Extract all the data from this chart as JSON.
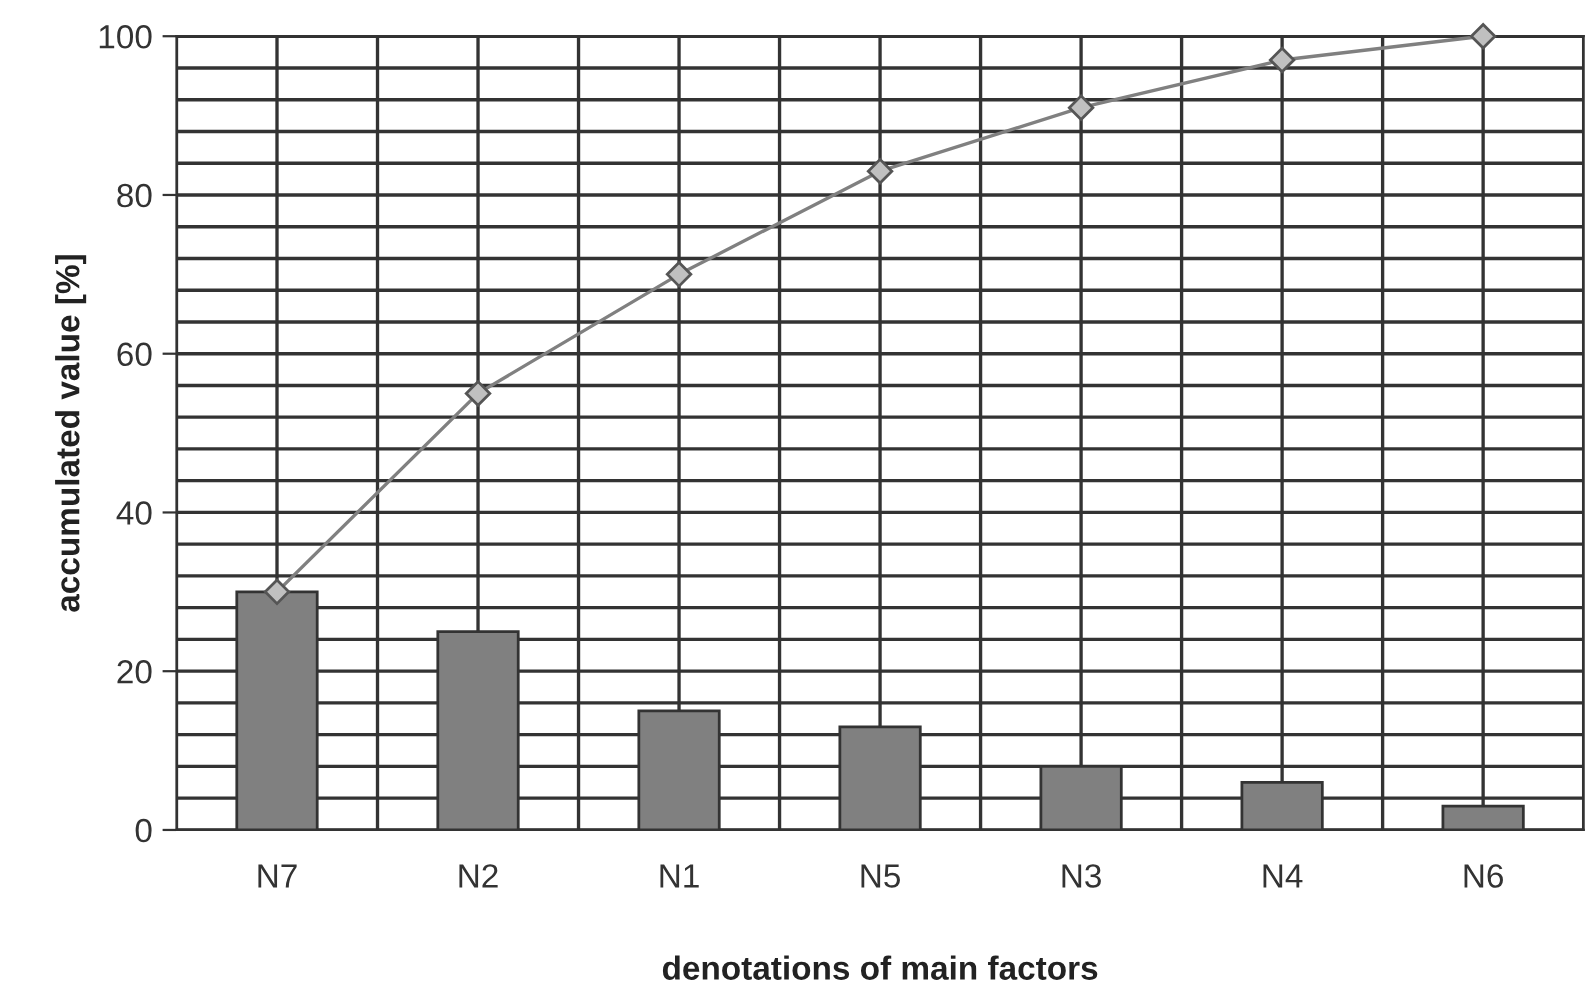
{
  "chart_data": {
    "type": "bar",
    "xlabel": "denotations of main factors",
    "ylabel": "accumulated value [%]",
    "categories": [
      "N7",
      "N2",
      "N1",
      "N5",
      "N3",
      "N4",
      "N6"
    ],
    "series": [
      {
        "color": "#808080",
        "values": [
          30,
          25,
          15,
          13,
          8,
          6,
          3
        ]
      },
      {
        "type": "line",
        "color": "#808080",
        "marker": "diamond",
        "values": [
          30,
          55,
          70,
          83,
          91,
          97,
          100
        ]
      }
    ],
    "ylim": [
      0,
      100
    ],
    "yticks": [
      0,
      {
        "value": 4,
        "label": null
      },
      {
        "value": 8,
        "label": null
      },
      {
        "value": 12,
        "label": null
      },
      {
        "value": 16,
        "label": null
      },
      20,
      {
        "value": 24,
        "label": null
      },
      {
        "value": 28,
        "label": null
      },
      {
        "value": 32,
        "label": null
      },
      {
        "value": 36,
        "label": null
      },
      40,
      {
        "value": 44,
        "label": null
      },
      {
        "value": 48,
        "label": null
      },
      {
        "value": 52,
        "label": null
      },
      {
        "value": 56,
        "label": null
      },
      60,
      {
        "value": 64,
        "label": null
      },
      {
        "value": 68,
        "label": null
      },
      {
        "value": 72,
        "label": null
      },
      {
        "value": 76,
        "label": null
      },
      80,
      {
        "value": 84,
        "label": null
      },
      {
        "value": 88,
        "label": null
      },
      {
        "value": 92,
        "label": null
      },
      {
        "value": 96,
        "label": null
      },
      100
    ],
    "grid": true
  }
}
